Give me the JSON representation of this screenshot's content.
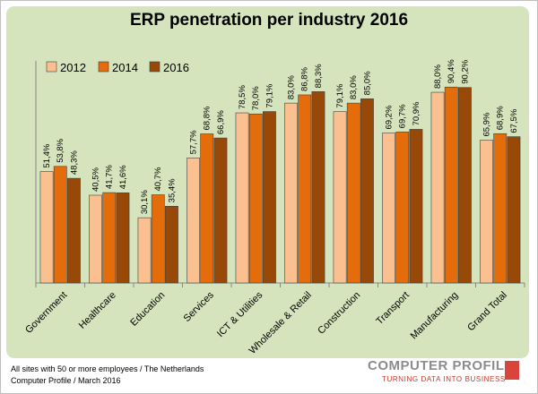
{
  "chart_data": {
    "type": "bar",
    "title": "ERP penetration per industry 2016",
    "categories": [
      "Government",
      "Healthcare",
      "Education",
      "Services",
      "ICT & Utilities",
      "Wholesale & Retail",
      "Construction",
      "Transport",
      "Manufacturing",
      "Grand Total"
    ],
    "series": [
      {
        "name": "2012",
        "color": "#fac090",
        "values": [
          51.4,
          40.5,
          30.1,
          57.7,
          78.5,
          83.0,
          79.1,
          69.2,
          88.0,
          65.9
        ],
        "labels": [
          "51,4%",
          "40,5%",
          "30,1%",
          "57,7%",
          "78,5%",
          "83,0%",
          "79,1%",
          "69,2%",
          "88,0%",
          "65,9%"
        ]
      },
      {
        "name": "2014",
        "color": "#e46c0a",
        "values": [
          53.8,
          41.7,
          40.7,
          68.8,
          78.0,
          86.8,
          83.0,
          69.7,
          90.4,
          68.9
        ],
        "labels": [
          "53,8%",
          "41,7%",
          "40,7%",
          "68,8%",
          "78,0%",
          "86,8%",
          "83,0%",
          "69,7%",
          "90,4%",
          "68,9%"
        ]
      },
      {
        "name": "2016",
        "color": "#984807",
        "values": [
          48.3,
          41.6,
          35.4,
          66.9,
          79.1,
          88.3,
          85.0,
          70.9,
          90.2,
          67.5
        ],
        "labels": [
          "48,3%",
          "41,6%",
          "35,4%",
          "66,9%",
          "79,1%",
          "88,3%",
          "85,0%",
          "70,9%",
          "90,2%",
          "67,5%"
        ]
      }
    ],
    "ylim": [
      0,
      100
    ],
    "grid": false,
    "legend_position": "top-left"
  },
  "footnotes": {
    "line1": "All sites with 50 or more employees  / The Netherlands",
    "line2": "Computer Profile / March 2016"
  },
  "logo": {
    "name": "COMPUTER PROFILE",
    "tagline": "TURNING DATA INTO BUSINESS"
  }
}
